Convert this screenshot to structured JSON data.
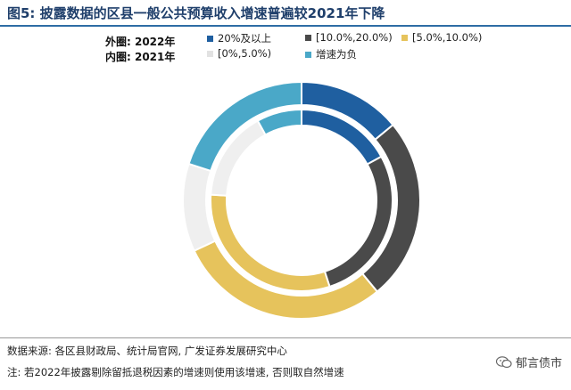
{
  "header": {
    "title": "图5:  披露数据的区县一般公共预算收入增速普遍较2021年下降"
  },
  "chart_data": {
    "type": "pie",
    "rings": [
      {
        "label": "外圈: 2022年",
        "slices": [
          {
            "category": "20%及以上",
            "value": 14
          },
          {
            "category": "[10.0%,20.0%)",
            "value": 25
          },
          {
            "category": "[5.0%,10.0%)",
            "value": 29
          },
          {
            "category": "[0%,5.0%)",
            "value": 12
          },
          {
            "category": "增速为负",
            "value": 20
          }
        ]
      },
      {
        "label": "内圈: 2021年",
        "slices": [
          {
            "category": "20%及以上",
            "value": 17
          },
          {
            "category": "[10.0%,20.0%)",
            "value": 28
          },
          {
            "category": "[5.0%,10.0%)",
            "value": 31
          },
          {
            "category": "[0%,5.0%)",
            "value": 16
          },
          {
            "category": "增速为负",
            "value": 8
          }
        ]
      }
    ],
    "legend": [
      {
        "label": "20%及以上",
        "color": "#1f5fa0"
      },
      {
        "label": "[10.0%,20.0%)",
        "color": "#4a4a4a"
      },
      {
        "label": "[5.0%,10.0%)",
        "color": "#e6c35c"
      },
      {
        "label": "[0%,5.0%)",
        "color": "#efefef"
      },
      {
        "label": "增速为负",
        "color": "#4aa8c8"
      }
    ],
    "legend_placement": "top"
  },
  "footer": {
    "source": "数据来源: 各区县财政局、统计局官网, 广发证券发展研究中心",
    "note": "注: 若2022年披露剔除留抵退税因素的增速则使用该增速, 否则取自然增速"
  },
  "watermark": {
    "text": "郁言债市",
    "icon": "wechat-icon"
  }
}
